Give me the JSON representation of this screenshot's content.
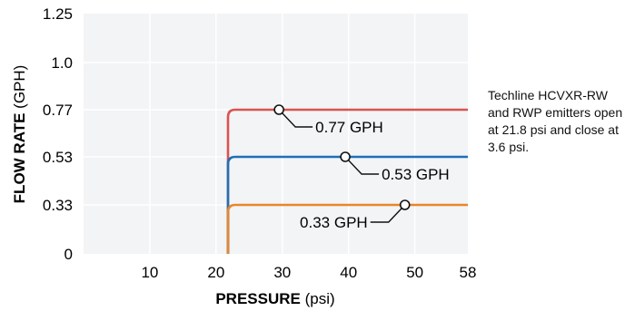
{
  "chart_data": {
    "type": "line",
    "xlabel": {
      "bold": "PRESSURE",
      "unit": " (psi)"
    },
    "ylabel": {
      "bold": "FLOW RATE",
      "unit": " (GPH)"
    },
    "xlim": [
      0,
      58
    ],
    "x_ticks": [
      10,
      20,
      30,
      40,
      50,
      58
    ],
    "y_ticks": [
      0,
      0.33,
      0.53,
      0.77,
      1.0,
      1.25
    ],
    "y_tick_labels": [
      "0",
      "0.33",
      "0.53",
      "0.77",
      "1.0",
      "1.25"
    ],
    "grid": true,
    "opening_pressure": 21.8,
    "series": [
      {
        "value": 0.77,
        "color": "#d9534f",
        "callout_x": 29.5,
        "label": "0.77 GPH",
        "label_side": "right"
      },
      {
        "value": 0.53,
        "color": "#1f6fb5",
        "callout_x": 39.5,
        "label": "0.53 GPH",
        "label_side": "right"
      },
      {
        "value": 0.33,
        "color": "#e8862a",
        "callout_x": 48.5,
        "label": "0.33 GPH",
        "label_side": "left"
      }
    ]
  },
  "note": "Techline HCVXR-RW and RWP emitters open at 21.8 psi and close at 3.6 psi.",
  "colors": {
    "plot_background": "#f2f4f6",
    "grid": "#ffffff"
  }
}
